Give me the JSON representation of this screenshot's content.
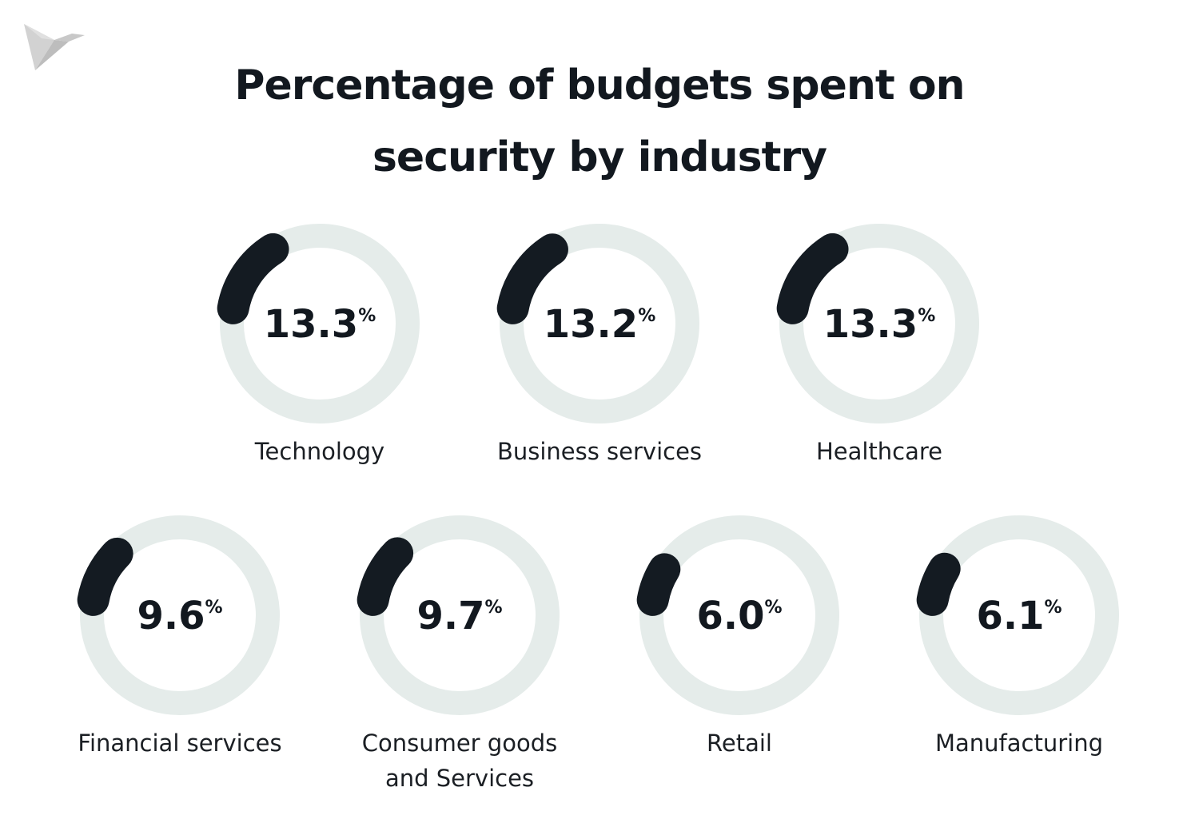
{
  "title_lines": [
    "Percentage of budgets spent on",
    "security by industry"
  ],
  "chart_data": {
    "type": "pie",
    "title": "Percentage of budgets spent on security by industry",
    "unit": "%",
    "categories": [
      "Technology",
      "Business services",
      "Healthcare",
      "Financial services",
      "Consumer goods and Services",
      "Retail",
      "Manufacturing"
    ],
    "label_lines": [
      [
        "Technology"
      ],
      [
        "Business services"
      ],
      [
        "Healthcare"
      ],
      [
        "Financial services"
      ],
      [
        "Consumer goods",
        "and Services"
      ],
      [
        "Retail"
      ],
      [
        "Manufacturing"
      ]
    ],
    "values": [
      13.3,
      13.2,
      13.3,
      9.6,
      9.7,
      6.0,
      6.1
    ],
    "value_labels": [
      "13.3",
      "13.2",
      "13.3",
      "9.6",
      "9.7",
      "6.0",
      "6.1"
    ],
    "ylim": [
      0,
      100
    ]
  },
  "colors": {
    "arc": "#141b22",
    "track": "#e5ecea",
    "text": "#12181f",
    "logo": "#c9c9c9"
  },
  "icons": {
    "logo": "bird-logo-icon"
  }
}
